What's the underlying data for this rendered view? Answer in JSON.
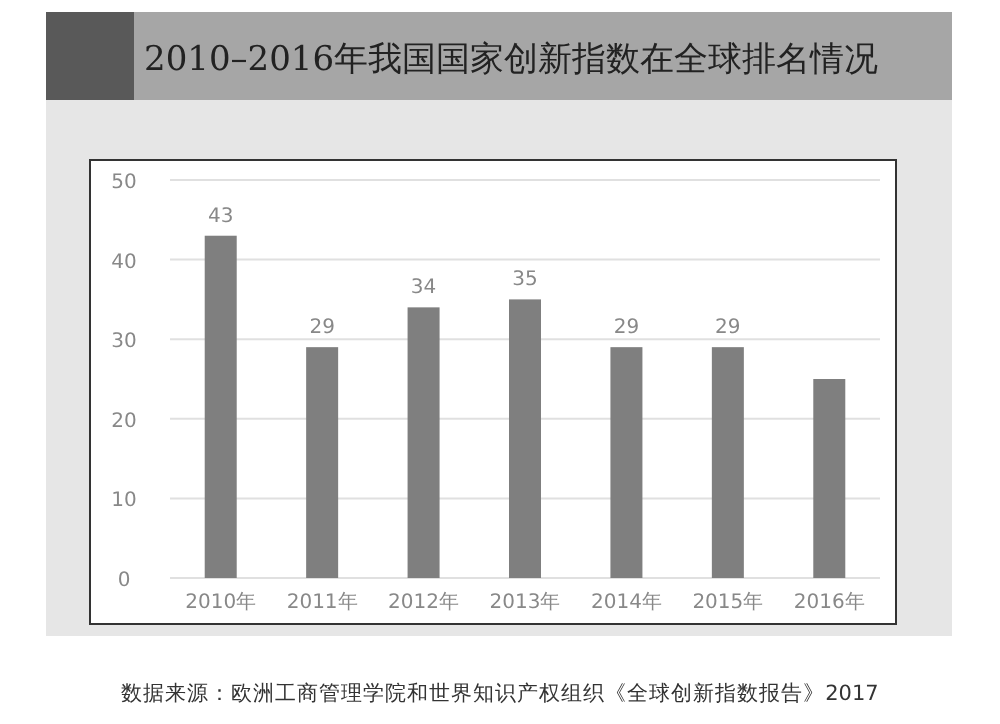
{
  "chart_data": {
    "type": "bar",
    "title": "2010–2016年我国国家创新指数在全球排名情况",
    "categories": [
      "2010年",
      "2011年",
      "2012年",
      "2013年",
      "2014年",
      "2015年",
      "2016年"
    ],
    "values": [
      43,
      29,
      34,
      35,
      29,
      29,
      25
    ],
    "value_labels": [
      "43",
      "29",
      "34",
      "35",
      "29",
      "29",
      null
    ],
    "color": "#7f7f7f",
    "ylim": [
      0,
      50
    ],
    "yticks": [
      0,
      10,
      20,
      30,
      40,
      50
    ],
    "grid": "y",
    "annotations": [
      "数据来源：欧洲工商管理学院和世界知识产权组织《全球创新指数报告》2017"
    ]
  }
}
